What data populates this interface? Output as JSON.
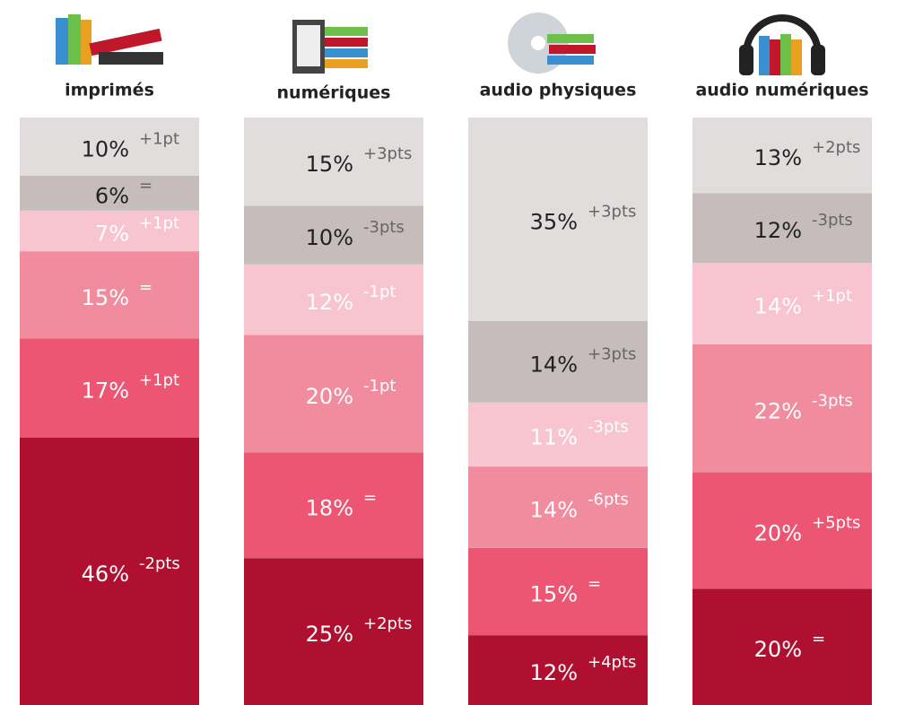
{
  "chart_data": {
    "type": "stacked_column",
    "categories": [
      "imprimés",
      "numériques",
      "audio physiques",
      "audio numériques"
    ],
    "series": [
      {
        "color": "#b01030",
        "values": [
          46,
          25,
          12,
          20
        ],
        "value_labels": [
          "46%",
          "25%",
          "12%",
          "20%"
        ],
        "changes": [
          "-2pts",
          "+2pts",
          "+4pts",
          "="
        ]
      },
      {
        "color": "#ec5673",
        "values": [
          17,
          18,
          15,
          20
        ],
        "value_labels": [
          "17%",
          "18%",
          "15%",
          "20%"
        ],
        "changes": [
          "+1pt",
          "=",
          "=",
          "+5pts"
        ]
      },
      {
        "color": "#f08c9e",
        "values": [
          15,
          20,
          14,
          22
        ],
        "value_labels": [
          "15%",
          "20%",
          "14%",
          "22%"
        ],
        "changes": [
          "=",
          "-1pt",
          "-6pts",
          "-3pts"
        ]
      },
      {
        "color": "#f8c4cf",
        "values": [
          7,
          12,
          11,
          14
        ],
        "value_labels": [
          "7%",
          "12%",
          "11%",
          "14%"
        ],
        "changes": [
          "+1pt",
          "-1pt",
          "-3pts",
          "+1pt"
        ]
      },
      {
        "color": "#c6bcbc",
        "values": [
          6,
          10,
          14,
          12
        ],
        "value_labels": [
          "6%",
          "10%",
          "14%",
          "12%"
        ],
        "changes": [
          "=",
          "-3pts",
          "+3pts",
          "-3pts"
        ]
      },
      {
        "color": "#e1dddd",
        "values": [
          10,
          15,
          35,
          13
        ],
        "value_labels": [
          "10%",
          "15%",
          "35%",
          "13%"
        ],
        "changes": [
          "+1pt",
          "+3pts",
          "+3pts",
          "+2pts"
        ]
      }
    ]
  }
}
